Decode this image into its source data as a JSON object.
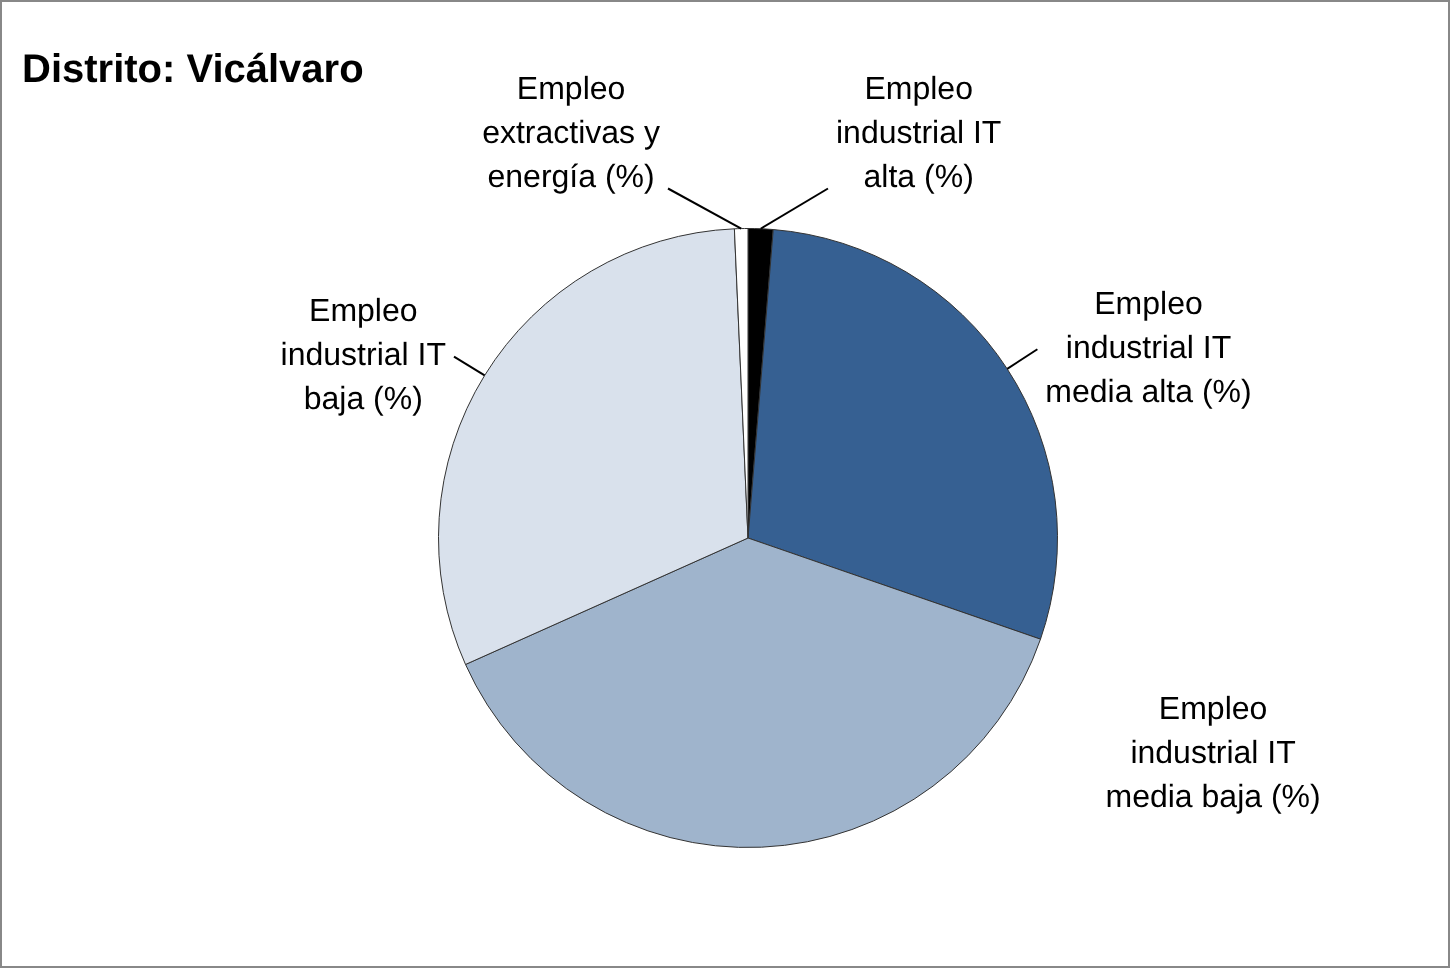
{
  "chart_data": {
    "type": "pie",
    "title": "Distrito: Vicálvaro",
    "categories": [
      "Empleo industrial IT alta (%)",
      "Empleo industrial IT media alta (%)",
      "Empleo industrial IT media baja (%)",
      "Empleo industrial IT baja (%)",
      "Empleo extractivas y energía (%)"
    ],
    "values": [
      1.3,
      29,
      38,
      31,
      0.7
    ],
    "colors": [
      "#000000",
      "#366092",
      "#9fb4cc",
      "#d9e1ec",
      "#ffffff"
    ],
    "legend": false
  }
}
